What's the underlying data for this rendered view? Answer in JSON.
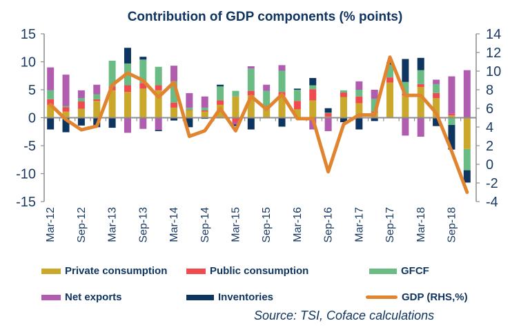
{
  "chart_data": {
    "type": "bar",
    "subtype": "stacked-bar-with-line",
    "title": "Contribution of GDP components (% points)",
    "xlabel": "",
    "ylabel": "",
    "ylim": [
      -15,
      15
    ],
    "y2lim": [
      -4,
      14
    ],
    "yticks": [
      "15",
      "10",
      "5",
      "0",
      "-5",
      "-10",
      "-15"
    ],
    "y2ticks": [
      "14",
      "12",
      "10",
      "8",
      "6",
      "4",
      "2",
      "0",
      "-2",
      "-4"
    ],
    "x_tick_labels": [
      "Mar-12",
      "Sep-12",
      "Mar-13",
      "Sep-13",
      "Mar-14",
      "Sep-14",
      "Mar-15",
      "Sep-15",
      "Mar-16",
      "Sep-16",
      "Mar-17",
      "Sep-17",
      "Mar-18",
      "Sep-18"
    ],
    "categories": [
      "Mar-12",
      "Jun-12",
      "Sep-12",
      "Dec-12",
      "Mar-13",
      "Jun-13",
      "Sep-13",
      "Dec-13",
      "Mar-14",
      "Jun-14",
      "Sep-14",
      "Dec-14",
      "Mar-15",
      "Jun-15",
      "Sep-15",
      "Dec-15",
      "Mar-16",
      "Jun-16",
      "Sep-16",
      "Dec-16",
      "Mar-17",
      "Jun-17",
      "Sep-17",
      "Dec-17",
      "Mar-18",
      "Jun-18",
      "Sep-18",
      "Dec-18"
    ],
    "series": [
      {
        "name": "Private consumption",
        "color": "#c9a82c",
        "axis": "left",
        "kind": "bar",
        "values": [
          2.3,
          1.1,
          1.6,
          3.0,
          4.9,
          4.6,
          5.2,
          4.9,
          1.8,
          1.3,
          1.1,
          2.3,
          3.8,
          4.0,
          2.0,
          3.9,
          1.5,
          3.1,
          0.2,
          3.7,
          2.6,
          0.9,
          6.3,
          4.0,
          5.5,
          3.5,
          0.4,
          -5.6
        ]
      },
      {
        "name": "Public consumption",
        "color": "#ef4a4f",
        "axis": "left",
        "kind": "bar",
        "values": [
          1.0,
          0.8,
          1.3,
          0.3,
          0.7,
          1.2,
          1.0,
          0.9,
          0.9,
          0.1,
          0.2,
          0.8,
          -0.8,
          0.8,
          0.1,
          0.7,
          1.5,
          2.0,
          0.6,
          0.8,
          1.2,
          0.2,
          0.9,
          0.3,
          0.5,
          0.9,
          0.3,
          0.0
        ]
      },
      {
        "name": "GFCF",
        "color": "#6bbb84",
        "axis": "left",
        "kind": "bar",
        "values": [
          1.6,
          0.2,
          0.6,
          0.9,
          4.6,
          3.9,
          4.2,
          3.3,
          3.8,
          0.4,
          0.5,
          2.5,
          1.0,
          4.0,
          2.7,
          3.8,
          2.0,
          0.7,
          0.1,
          0.4,
          1.2,
          2.3,
          2.3,
          2.1,
          2.5,
          1.6,
          -1.3,
          -3.8
        ]
      },
      {
        "name": "Net exports",
        "color": "#b05db0",
        "axis": "left",
        "kind": "bar",
        "values": [
          4.1,
          5.6,
          1.4,
          1.7,
          0.0,
          -2.7,
          -2.0,
          -2.2,
          2.8,
          2.6,
          2.0,
          0.0,
          -0.4,
          0.4,
          1.1,
          1.0,
          0.0,
          -2.1,
          -2.4,
          0.0,
          1.5,
          1.6,
          0.0,
          -3.2,
          -3.4,
          0.8,
          6.7,
          8.5
        ]
      },
      {
        "name": "Inventories",
        "color": "#0e3560",
        "axis": "left",
        "kind": "bar",
        "values": [
          -2.1,
          -2.6,
          -1.4,
          -1.7,
          -1.8,
          2.8,
          0.5,
          -0.2,
          -0.5,
          -1.7,
          -0.2,
          0.3,
          -0.3,
          -2.1,
          0.0,
          -1.6,
          0.2,
          1.3,
          0.8,
          -0.8,
          -2.1,
          -0.6,
          0.4,
          4.1,
          2.2,
          -1.5,
          -4.4,
          -2.2
        ]
      },
      {
        "name": "GDP (RHS,%)",
        "color": "#e0842f",
        "axis": "right",
        "kind": "line",
        "values": [
          6.4,
          4.8,
          3.7,
          4.1,
          8.5,
          9.8,
          9.0,
          7.2,
          8.8,
          3.0,
          3.6,
          6.0,
          3.6,
          7.3,
          5.9,
          7.5,
          4.9,
          4.9,
          -0.8,
          4.3,
          5.3,
          5.3,
          11.5,
          7.4,
          7.4,
          5.5,
          1.4,
          -3.0
        ]
      }
    ],
    "legend_position": "bottom",
    "grid": false,
    "source": "Source: TSI, Coface calculations"
  },
  "legend": [
    {
      "label": "Private consumption",
      "color": "#c9a82c",
      "kind": "bar"
    },
    {
      "label": "Public consumption",
      "color": "#ef4a4f",
      "kind": "bar"
    },
    {
      "label": "GFCF",
      "color": "#6bbb84",
      "kind": "bar"
    },
    {
      "label": "Net exports",
      "color": "#b05db0",
      "kind": "bar"
    },
    {
      "label": "Inventories",
      "color": "#0e3560",
      "kind": "bar"
    },
    {
      "label": "GDP (RHS,%)",
      "color": "#e0842f",
      "kind": "line"
    }
  ],
  "source": "Source: TSI, Coface calculations"
}
